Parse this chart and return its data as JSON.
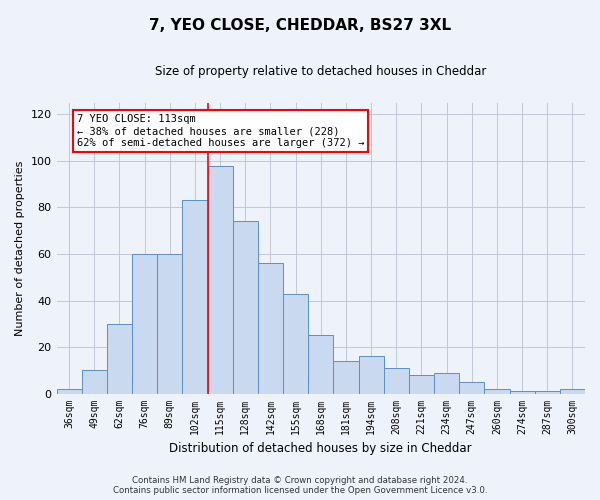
{
  "title": "7, YEO CLOSE, CHEDDAR, BS27 3XL",
  "subtitle": "Size of property relative to detached houses in Cheddar",
  "xlabel": "Distribution of detached houses by size in Cheddar",
  "ylabel": "Number of detached properties",
  "categories": [
    "36sqm",
    "49sqm",
    "62sqm",
    "76sqm",
    "89sqm",
    "102sqm",
    "115sqm",
    "128sqm",
    "142sqm",
    "155sqm",
    "168sqm",
    "181sqm",
    "194sqm",
    "208sqm",
    "221sqm",
    "234sqm",
    "247sqm",
    "260sqm",
    "274sqm",
    "287sqm",
    "300sqm"
  ],
  "values": [
    2,
    10,
    30,
    60,
    60,
    83,
    98,
    74,
    56,
    43,
    25,
    14,
    16,
    11,
    8,
    9,
    5,
    2,
    1,
    1,
    2
  ],
  "bar_color": "#c9d9f0",
  "bar_edge_color": "#5a8fcb",
  "grid_color": "#c0c8d8",
  "background_color": "#eef2fa",
  "vline_bin_index": 6,
  "vline_color": "red",
  "annotation_text": "7 YEO CLOSE: 113sqm\n← 38% of detached houses are smaller (228)\n62% of semi-detached houses are larger (372) →",
  "annotation_box_color": "white",
  "annotation_box_edge_color": "red",
  "ylim": [
    0,
    125
  ],
  "yticks": [
    0,
    20,
    40,
    60,
    80,
    100,
    120
  ],
  "footer_line1": "Contains HM Land Registry data © Crown copyright and database right 2024.",
  "footer_line2": "Contains public sector information licensed under the Open Government Licence v3.0."
}
